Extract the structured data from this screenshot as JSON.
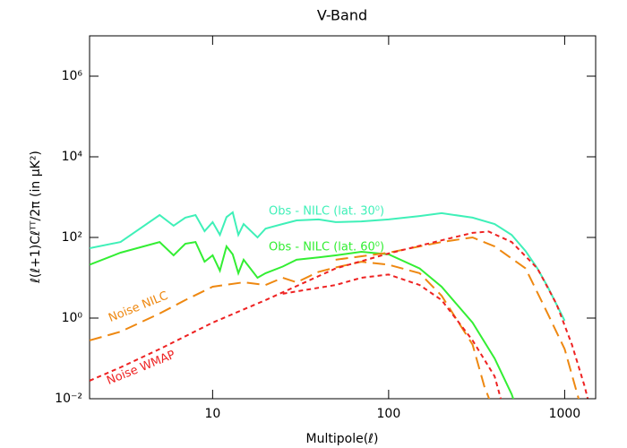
{
  "chart_data": {
    "type": "line",
    "title": "V-Band",
    "xlabel": "Multipole(ℓ)",
    "ylabel": "ℓ(ℓ+1)Cℓᵀᵀ/2π (in μK²)",
    "xscale": "log",
    "yscale": "log",
    "xlim": [
      2,
      1500
    ],
    "ylim": [
      0.01,
      10000000
    ],
    "xticks": [
      10,
      100,
      1000
    ],
    "yticks": [
      {
        "value": 0.01,
        "label": "10⁻²"
      },
      {
        "value": 1,
        "label": "10⁰"
      },
      {
        "value": 100,
        "label": "10²"
      },
      {
        "value": 10000,
        "label": "10⁴"
      },
      {
        "value": 1000000,
        "label": "10⁶"
      }
    ],
    "series": [
      {
        "name": "Obs - NILC (lat. 30⁰)",
        "color": "#3ff0b8",
        "dash": "solid",
        "x": [
          2,
          3,
          5,
          6,
          7,
          8,
          9,
          10,
          11,
          12,
          13,
          14,
          15,
          18,
          20,
          25,
          30,
          40,
          50,
          70,
          100,
          150,
          200,
          300,
          400,
          500,
          600,
          700,
          800,
          1000
        ],
        "values": [
          54,
          77,
          360,
          195,
          310,
          360,
          143,
          240,
          116,
          320,
          420,
          116,
          215,
          100,
          166,
          215,
          265,
          280,
          240,
          250,
          280,
          340,
          400,
          310,
          215,
          116,
          46,
          17,
          6,
          0.86
        ]
      },
      {
        "name": "Obs - NILC (lat. 60⁰)",
        "color": "#33ee33",
        "dash": "solid",
        "x": [
          2,
          3,
          5,
          6,
          7,
          8,
          9,
          10,
          11,
          12,
          13,
          14,
          15,
          18,
          20,
          25,
          30,
          40,
          50,
          70,
          100,
          150,
          200,
          300,
          400,
          500,
          520
        ],
        "values": [
          21,
          42,
          77,
          36,
          70,
          77,
          25,
          36,
          15,
          60,
          38,
          13,
          28,
          10,
          13,
          19,
          28,
          32,
          36,
          44,
          38,
          17,
          6,
          0.77,
          0.1,
          0.013,
          0.008
        ]
      },
      {
        "name": "Noise NILC",
        "color": "#ee8811",
        "dash": "long",
        "x": [
          2,
          3,
          5,
          7,
          10,
          15,
          20,
          25,
          30,
          40,
          50,
          70,
          100,
          150,
          200,
          300,
          350,
          380
        ],
        "values": [
          0.28,
          0.46,
          1.3,
          2.8,
          6,
          7.7,
          6.6,
          10,
          7.7,
          14,
          18,
          25,
          21,
          13,
          3.6,
          0.22,
          0.02,
          0.008
        ]
      },
      {
        "color": "#ee8811",
        "dash": "long",
        "x": [
          50,
          100,
          150,
          200,
          300,
          400,
          600,
          800,
          1000,
          1200,
          1250
        ],
        "values": [
          28,
          42,
          60,
          77,
          100,
          60,
          17,
          1.3,
          0.17,
          0.01,
          0.006
        ]
      },
      {
        "name": "Noise WMAP",
        "color": "#ee2222",
        "dash": "short",
        "x": [
          2,
          3,
          5,
          10,
          20,
          50,
          100,
          200,
          300,
          370,
          500,
          700,
          900,
          1100,
          1300,
          1380
        ],
        "values": [
          0.028,
          0.06,
          0.17,
          0.77,
          2.8,
          17,
          40,
          85,
          130,
          140,
          77,
          17,
          2.2,
          0.22,
          0.02,
          0.007
        ]
      },
      {
        "color": "#ee2222",
        "dash": "short",
        "x": [
          25,
          30,
          50,
          70,
          100,
          150,
          200,
          300,
          400,
          440
        ],
        "values": [
          4,
          4.6,
          6.6,
          10,
          12,
          6.6,
          2.8,
          0.28,
          0.036,
          0.008
        ]
      }
    ]
  }
}
